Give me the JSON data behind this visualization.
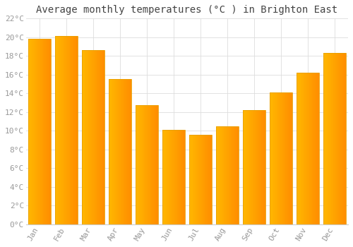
{
  "title": "Average monthly temperatures (°C ) in Brighton East",
  "months": [
    "Jan",
    "Feb",
    "Mar",
    "Apr",
    "May",
    "Jun",
    "Jul",
    "Aug",
    "Sep",
    "Oct",
    "Nov",
    "Dec"
  ],
  "values": [
    19.8,
    20.1,
    18.6,
    15.5,
    12.7,
    10.1,
    9.6,
    10.5,
    12.2,
    14.1,
    16.2,
    18.3
  ],
  "bar_color_left": "#FFB800",
  "bar_color_right": "#FF8C00",
  "bar_edge_color": "#E8A000",
  "ylim": [
    0,
    22
  ],
  "yticks": [
    0,
    2,
    4,
    6,
    8,
    10,
    12,
    14,
    16,
    18,
    20,
    22
  ],
  "ytick_labels": [
    "0°C",
    "2°C",
    "4°C",
    "6°C",
    "8°C",
    "10°C",
    "12°C",
    "14°C",
    "16°C",
    "18°C",
    "20°C",
    "22°C"
  ],
  "grid_color": "#dddddd",
  "background_color": "#ffffff",
  "title_fontsize": 10,
  "tick_fontsize": 8,
  "tick_color": "#999999",
  "font_family": "monospace",
  "bar_width": 0.85
}
